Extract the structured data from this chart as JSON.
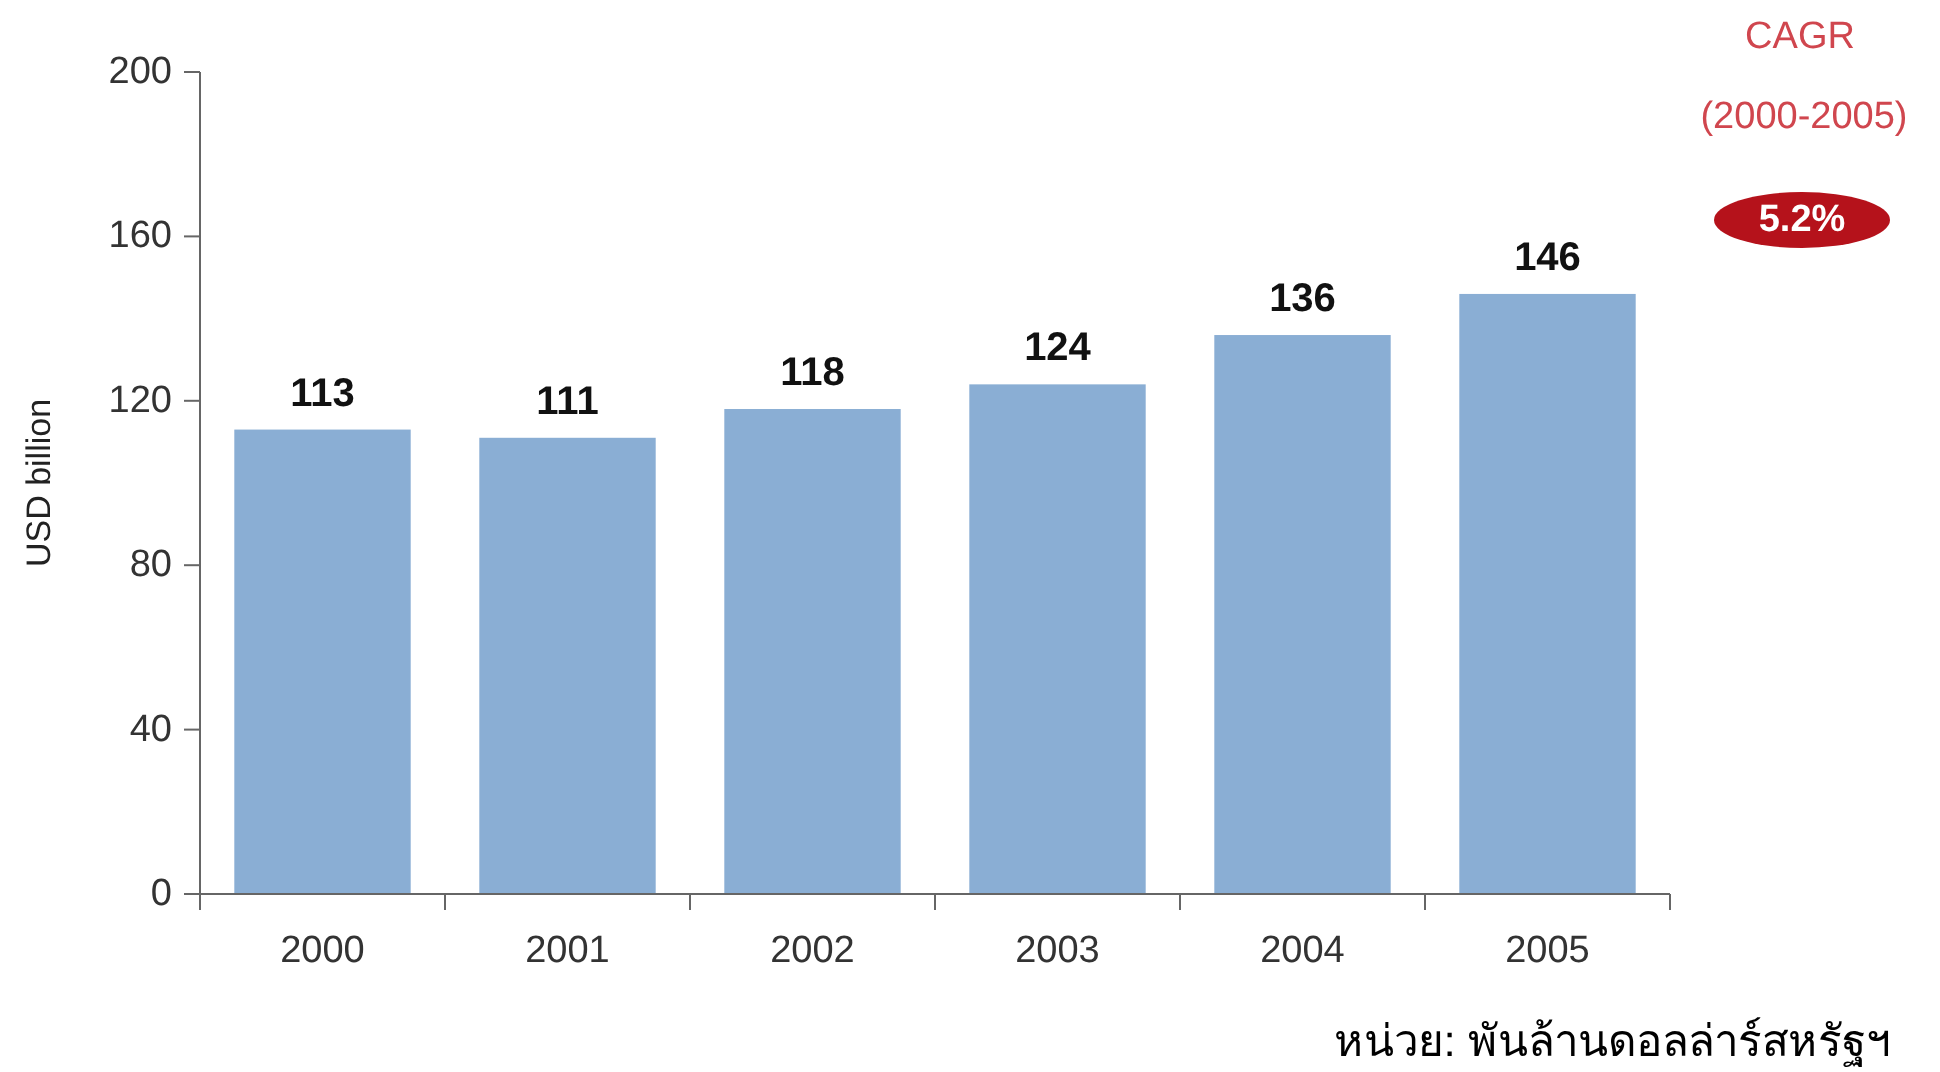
{
  "chart_data": {
    "type": "bar",
    "categories": [
      "2000",
      "2001",
      "2002",
      "2003",
      "2004",
      "2005"
    ],
    "values": [
      113,
      111,
      118,
      124,
      136,
      146
    ],
    "color": "#8aaed4",
    "ylim": [
      0,
      200
    ],
    "yticks": [
      0,
      40,
      80,
      120,
      160,
      200
    ],
    "ylabel": "USD billion",
    "data_labels": true,
    "grid": false,
    "annotations": [
      "CAGR",
      "(2000-2005)",
      "5.2%",
      "หน่วย: พันล้านดอลล่าร์สหรัฐฯ"
    ]
  }
}
